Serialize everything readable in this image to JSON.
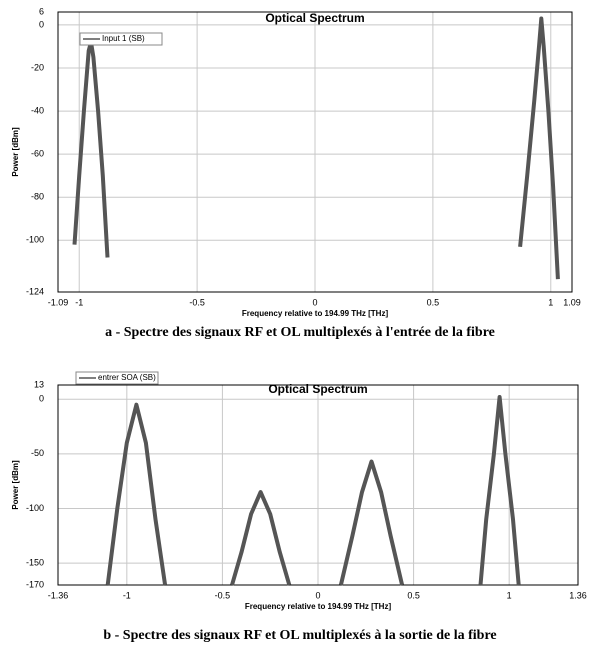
{
  "chart_data": [
    {
      "type": "line",
      "title": "Optical Spectrum",
      "xlabel": "Frequency relative to 194.99 THz [THz]",
      "ylabel": "Power [dBm]",
      "caption": "a - Spectre des signaux RF et OL multiplexés à l'entrée de la fibre",
      "x": [
        -1.02,
        -1.0,
        -0.98,
        -0.96,
        -0.95,
        -0.94,
        -0.92,
        -0.9,
        -0.88,
        0,
        0.87,
        0.9,
        0.93,
        0.95,
        0.96,
        0.97,
        0.99,
        1.01,
        1.03
      ],
      "series": [
        {
          "name": "Input 1  (SB)",
          "color": "#555555",
          "values": [
            -102,
            -70,
            -40,
            -12,
            -8,
            -15,
            -40,
            -70,
            -108,
            null,
            -103,
            -70,
            -35,
            -10,
            3,
            -10,
            -40,
            -75,
            -118
          ]
        }
      ],
      "xlim": [
        -1.09,
        1.09
      ],
      "xticks": [
        -1.09,
        -1,
        -0.5,
        0,
        0.5,
        1,
        1.09
      ],
      "ylim": [
        -124,
        6
      ],
      "yticks": [
        6,
        0,
        -20,
        -40,
        -60,
        -80,
        -100,
        -124
      ],
      "grid": true
    },
    {
      "type": "line",
      "title": "Optical Spectrum",
      "xlabel": "Frequency relative to 194.99 THz [THz]",
      "ylabel": "Power [dBm]",
      "caption": "b - Spectre des signaux RF et OL multiplexés à la sortie de la fibre",
      "x": [
        -1.1,
        -1.05,
        -1.0,
        -0.95,
        -0.9,
        -0.85,
        -0.8,
        -0.6,
        -0.45,
        -0.4,
        -0.35,
        -0.3,
        -0.25,
        -0.2,
        -0.15,
        0,
        0.12,
        0.18,
        0.23,
        0.28,
        0.33,
        0.38,
        0.44,
        0.6,
        0.85,
        0.88,
        0.92,
        0.95,
        0.98,
        1.02,
        1.05
      ],
      "series": [
        {
          "name": "entrer SOA  (SB)",
          "color": "#555555",
          "values": [
            -170,
            -100,
            -40,
            -5,
            -40,
            -110,
            -170,
            null,
            -170,
            -140,
            -105,
            -85,
            -105,
            -140,
            -170,
            null,
            -170,
            -125,
            -85,
            -57,
            -85,
            -125,
            -170,
            null,
            -170,
            -110,
            -50,
            2,
            -50,
            -110,
            -170
          ]
        }
      ],
      "xlim": [
        -1.36,
        1.36
      ],
      "xticks": [
        -1.36,
        -1,
        -0.5,
        0,
        0.5,
        1,
        1.36
      ],
      "ylim": [
        -170,
        13
      ],
      "yticks": [
        13,
        0,
        -50,
        -100,
        -150,
        -170
      ],
      "grid": true
    }
  ]
}
